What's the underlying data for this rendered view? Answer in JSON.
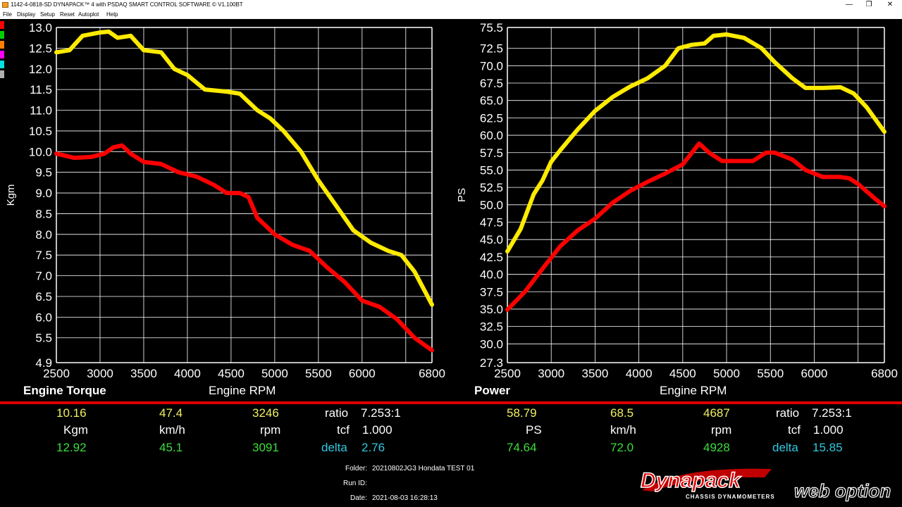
{
  "window": {
    "title": "1142-4-0818-SD DYNAPACK™ 4 with PSDAQ SMART CONTROL SOFTWARE © V1.100BT",
    "minimize_label": "—",
    "restore_label": "❐",
    "close_label": "✕"
  },
  "menu": {
    "items": [
      "File",
      "Display",
      "Setup",
      "Reset",
      "Autoplot",
      "Help"
    ]
  },
  "swatches": [
    "#ff0000",
    "#00d000",
    "#ff8000",
    "#ff00ff",
    "#00e0e0",
    "#b0b0b0"
  ],
  "colors": {
    "yellow_trace": "#ffeb00",
    "red_trace": "#ff0000",
    "grid": "#ffffff",
    "divider": "#e00000"
  },
  "torque_panel": {
    "title": "Engine Torque",
    "xlabel": "Engine RPM",
    "ylabel": "Kgm"
  },
  "power_panel": {
    "title": "Power",
    "xlabel": "Engine RPM",
    "ylabel": "PS"
  },
  "chart_data": [
    {
      "type": "line",
      "title": "Engine Torque",
      "xlabel": "Engine RPM",
      "ylabel": "Kgm",
      "xlim": [
        2500,
        6800
      ],
      "ylim": [
        4.9,
        13.0
      ],
      "x_ticks": [
        "2500",
        "3000",
        "3500",
        "4000",
        "4500",
        "5000",
        "5500",
        "6000",
        "6800"
      ],
      "y_ticks": [
        "13.0",
        "12.5",
        "12.0",
        "11.5",
        "11.0",
        "10.5",
        "10.0",
        "9.5",
        "9.0",
        "8.5",
        "8.0",
        "7.5",
        "7.0",
        "6.5",
        "6.0",
        "5.5",
        "4.9"
      ],
      "grid": true,
      "series": [
        {
          "color": "#ffeb00",
          "x": [
            2500,
            2650,
            2800,
            3000,
            3100,
            3200,
            3350,
            3500,
            3700,
            3850,
            4000,
            4200,
            4450,
            4600,
            4800,
            4950,
            5100,
            5300,
            5500,
            5700,
            5900,
            6100,
            6300,
            6450,
            6600,
            6800
          ],
          "y": [
            12.4,
            12.45,
            12.8,
            12.88,
            12.9,
            12.75,
            12.8,
            12.45,
            12.4,
            12.0,
            11.85,
            11.5,
            11.45,
            11.4,
            11.0,
            10.8,
            10.5,
            10.0,
            9.3,
            8.7,
            8.1,
            7.8,
            7.6,
            7.5,
            7.1,
            6.3
          ]
        },
        {
          "color": "#ff0000",
          "x": [
            2500,
            2700,
            2900,
            3050,
            3150,
            3250,
            3350,
            3500,
            3700,
            3900,
            4100,
            4300,
            4450,
            4600,
            4700,
            4800,
            5000,
            5200,
            5400,
            5600,
            5800,
            6000,
            6200,
            6400,
            6600,
            6800
          ],
          "y": [
            9.95,
            9.85,
            9.87,
            9.95,
            10.1,
            10.15,
            9.95,
            9.75,
            9.7,
            9.5,
            9.4,
            9.2,
            9.0,
            9.0,
            8.9,
            8.4,
            8.0,
            7.75,
            7.6,
            7.2,
            6.85,
            6.4,
            6.25,
            5.95,
            5.5,
            5.2
          ]
        }
      ]
    },
    {
      "type": "line",
      "title": "Power",
      "xlabel": "Engine RPM",
      "ylabel": "PS",
      "xlim": [
        2500,
        6800
      ],
      "ylim": [
        27.3,
        75.5
      ],
      "x_ticks": [
        "2500",
        "3000",
        "3500",
        "4000",
        "4500",
        "5000",
        "5500",
        "6000",
        "6800"
      ],
      "y_ticks": [
        "75.5",
        "72.5",
        "70.0",
        "67.5",
        "65.0",
        "62.5",
        "60.0",
        "57.5",
        "55.0",
        "52.5",
        "50.0",
        "47.5",
        "45.0",
        "42.5",
        "40.0",
        "37.5",
        "35.0",
        "32.5",
        "30.0",
        "27.3"
      ],
      "grid": true,
      "series": [
        {
          "color": "#ffeb00",
          "x": [
            2500,
            2650,
            2800,
            2900,
            3000,
            3100,
            3300,
            3500,
            3700,
            3900,
            4100,
            4300,
            4450,
            4600,
            4750,
            4850,
            5000,
            5200,
            5400,
            5550,
            5750,
            5900,
            6100,
            6300,
            6450,
            6600,
            6800
          ],
          "y": [
            43.3,
            46.5,
            51.5,
            53.5,
            56.2,
            57.8,
            60.8,
            63.5,
            65.5,
            67.0,
            68.2,
            70.0,
            72.5,
            73.0,
            73.2,
            74.3,
            74.5,
            74.0,
            72.5,
            70.5,
            68.2,
            66.8,
            66.8,
            66.9,
            66.0,
            64.0,
            60.5
          ]
        },
        {
          "color": "#ff0000",
          "x": [
            2500,
            2700,
            2900,
            3100,
            3300,
            3500,
            3700,
            3900,
            4100,
            4300,
            4500,
            4687,
            4800,
            4950,
            5100,
            5300,
            5450,
            5550,
            5750,
            5900,
            6100,
            6300,
            6400,
            6500,
            6700,
            6800
          ],
          "y": [
            34.9,
            37.5,
            40.8,
            44.0,
            46.3,
            48.0,
            50.3,
            52.0,
            53.3,
            54.5,
            55.8,
            58.8,
            57.5,
            56.3,
            56.3,
            56.3,
            57.5,
            57.5,
            56.5,
            55.0,
            54.0,
            54.0,
            53.8,
            53.0,
            50.8,
            49.8
          ]
        }
      ]
    }
  ],
  "readouts": {
    "left": {
      "current": [
        "10.16",
        "47.4",
        "3246"
      ],
      "units": [
        "Kgm",
        "km/h",
        "rpm"
      ],
      "peak": [
        "12.92",
        "45.1",
        "3091"
      ],
      "ratio_label": "ratio",
      "ratio_value": "7.253:1",
      "tcf_label": "tcf",
      "tcf_value": "1.000",
      "delta_label": "delta",
      "delta_value": "2.76"
    },
    "right": {
      "current": [
        "58.79",
        "68.5",
        "4687"
      ],
      "units": [
        "PS",
        "km/h",
        "rpm"
      ],
      "peak": [
        "74.64",
        "72.0",
        "4928"
      ],
      "ratio_label": "ratio",
      "ratio_value": "7.253:1",
      "tcf_label": "tcf",
      "tcf_value": "1.000",
      "delta_label": "delta",
      "delta_value": "15.85"
    }
  },
  "run_info": {
    "folder_label": "Folder:",
    "folder_value": "20210802JG3 Hondata TEST 01",
    "runid_label": "Run ID:",
    "runid_value": "",
    "date_label": "Date:",
    "date_value": "2021-08-03 16:28:13"
  },
  "logo": {
    "brand": "Dynapack",
    "subtitle": "CHASSIS DYNAMOMETERS",
    "watermark": "web option"
  }
}
